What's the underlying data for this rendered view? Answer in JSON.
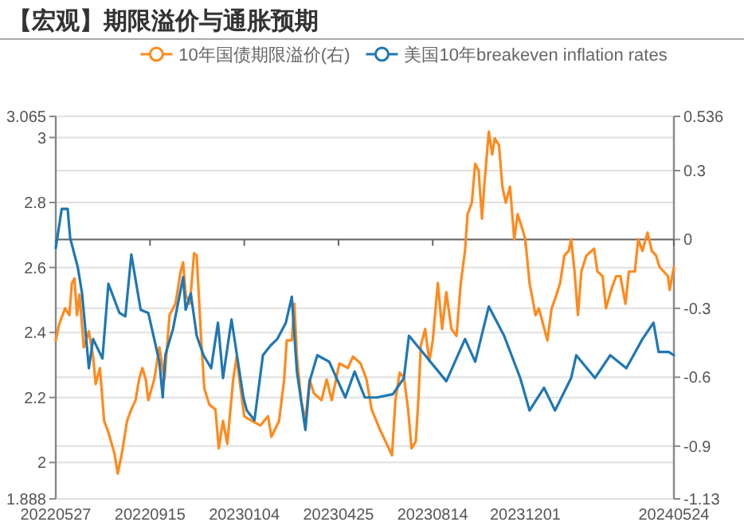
{
  "chart_data": {
    "type": "line",
    "title": "【宏观】期限溢价与通胀预期",
    "legend": "top",
    "grid": "y",
    "xlim": [
      "2022-05-27",
      "2024-05-24"
    ],
    "xticks": [
      {
        "value": "2022-05-27",
        "label": "20220527"
      },
      {
        "value": "2022-09-15",
        "label": "20220915"
      },
      {
        "value": "2023-01-04",
        "label": "20230104"
      },
      {
        "value": "2023-04-25",
        "label": "20230425"
      },
      {
        "value": "2023-08-14",
        "label": "20230814"
      },
      {
        "value": "2023-12-01",
        "label": "20231201"
      },
      {
        "value": "2024-05-24",
        "label": "20240524"
      }
    ],
    "ylim": [
      1.888,
      3.065
    ],
    "yticks": [
      1.888,
      2,
      2.2,
      2.4,
      2.6,
      2.8,
      3,
      3.065
    ],
    "y2lim": [
      -1.13,
      0.536
    ],
    "y2ticks": [
      -1.13,
      -0.9,
      -0.6,
      -0.3,
      0,
      0.3,
      0.536
    ],
    "series": [
      {
        "name": "10年国债期限溢价(右)",
        "color": "#ff8a1e",
        "axis": "y2",
        "x": [
          "2022-05-27",
          "2022-05-31",
          "2022-06-07",
          "2022-06-12",
          "2022-06-15",
          "2022-06-18",
          "2022-06-21",
          "2022-06-24",
          "2022-06-29",
          "2022-07-05",
          "2022-07-10",
          "2022-07-13",
          "2022-07-18",
          "2022-07-23",
          "2022-07-28",
          "2022-08-04",
          "2022-08-08",
          "2022-08-13",
          "2022-08-19",
          "2022-08-24",
          "2022-08-29",
          "2022-09-02",
          "2022-09-06",
          "2022-09-10",
          "2022-09-13",
          "2022-09-20",
          "2022-09-26",
          "2022-10-02",
          "2022-10-08",
          "2022-10-15",
          "2022-10-21",
          "2022-10-24",
          "2022-10-27",
          "2022-11-01",
          "2022-11-06",
          "2022-11-09",
          "2022-11-14",
          "2022-11-18",
          "2022-11-24",
          "2022-12-01",
          "2022-12-05",
          "2022-12-10",
          "2022-12-15",
          "2022-12-22",
          "2022-12-26",
          "2022-12-30",
          "2023-01-04",
          "2023-01-13",
          "2023-01-23",
          "2023-02-01",
          "2023-02-05",
          "2023-02-14",
          "2023-02-20",
          "2023-02-23",
          "2023-03-01",
          "2023-03-04",
          "2023-03-07",
          "2023-03-12",
          "2023-03-17",
          "2023-03-22",
          "2023-03-27",
          "2023-04-05",
          "2023-04-11",
          "2023-04-17",
          "2023-04-26",
          "2023-05-06",
          "2023-05-12",
          "2023-05-21",
          "2023-05-28",
          "2023-06-03",
          "2023-06-13",
          "2023-06-22",
          "2023-06-27",
          "2023-07-01",
          "2023-07-06",
          "2023-07-11",
          "2023-07-16",
          "2023-07-20",
          "2023-07-25",
          "2023-07-28",
          "2023-07-31",
          "2023-08-05",
          "2023-08-10",
          "2023-08-14",
          "2023-08-20",
          "2023-08-25",
          "2023-08-30",
          "2023-09-05",
          "2023-09-11",
          "2023-09-16",
          "2023-09-21",
          "2023-09-24",
          "2023-09-29",
          "2023-10-03",
          "2023-10-07",
          "2023-10-11",
          "2023-10-14",
          "2023-10-19",
          "2023-10-23",
          "2023-10-26",
          "2023-10-31",
          "2023-11-04",
          "2023-11-08",
          "2023-11-13",
          "2023-11-18",
          "2023-11-22",
          "2023-11-28",
          "2023-12-01",
          "2023-12-06",
          "2023-12-13",
          "2023-12-17",
          "2023-12-22",
          "2023-12-27",
          "2024-01-01",
          "2024-01-05",
          "2024-01-11",
          "2024-01-16",
          "2024-01-21",
          "2024-01-24",
          "2024-01-28",
          "2024-02-01",
          "2024-02-05",
          "2024-02-11",
          "2024-02-20",
          "2024-02-24",
          "2024-03-01",
          "2024-03-05",
          "2024-03-12",
          "2024-03-17",
          "2024-03-22",
          "2024-03-28",
          "2024-04-01",
          "2024-04-08",
          "2024-04-12",
          "2024-04-17",
          "2024-04-23",
          "2024-04-28",
          "2024-05-03",
          "2024-05-07",
          "2024-05-12",
          "2024-05-17",
          "2024-05-19",
          "2024-05-24"
        ],
        "values": [
          -0.44,
          -0.37,
          -0.3,
          -0.33,
          -0.19,
          -0.17,
          -0.33,
          -0.24,
          -0.47,
          -0.4,
          -0.51,
          -0.63,
          -0.56,
          -0.79,
          -0.84,
          -0.93,
          -1.02,
          -0.93,
          -0.79,
          -0.74,
          -0.7,
          -0.61,
          -0.56,
          -0.61,
          -0.7,
          -0.61,
          -0.47,
          -0.61,
          -0.33,
          -0.28,
          -0.14,
          -0.1,
          -0.24,
          -0.28,
          -0.06,
          -0.07,
          -0.42,
          -0.65,
          -0.72,
          -0.74,
          -0.91,
          -0.79,
          -0.89,
          -0.61,
          -0.51,
          -0.63,
          -0.77,
          -0.79,
          -0.81,
          -0.77,
          -0.86,
          -0.79,
          -0.61,
          -0.44,
          -0.44,
          -0.28,
          -0.51,
          -0.7,
          -0.79,
          -0.61,
          -0.67,
          -0.7,
          -0.61,
          -0.7,
          -0.54,
          -0.56,
          -0.51,
          -0.54,
          -0.61,
          -0.74,
          -0.83,
          -0.9,
          -0.94,
          -0.7,
          -0.58,
          -0.6,
          -0.74,
          -0.91,
          -0.88,
          -0.7,
          -0.46,
          -0.39,
          -0.53,
          -0.44,
          -0.19,
          -0.39,
          -0.23,
          -0.39,
          -0.42,
          -0.19,
          -0.05,
          0.11,
          0.16,
          0.33,
          0.3,
          0.09,
          0.25,
          0.47,
          0.37,
          0.44,
          0.41,
          0.23,
          0.16,
          0.23,
          0.0,
          0.11,
          0.04,
          0.0,
          -0.19,
          -0.33,
          -0.3,
          -0.37,
          -0.44,
          -0.3,
          -0.26,
          -0.19,
          -0.07,
          -0.05,
          0.0,
          -0.14,
          -0.33,
          -0.14,
          -0.07,
          -0.04,
          -0.14,
          -0.16,
          -0.3,
          -0.21,
          -0.16,
          -0.16,
          -0.28,
          -0.14,
          -0.14,
          0.0,
          -0.05,
          0.03,
          -0.05,
          -0.07,
          -0.12,
          -0.14,
          -0.16,
          -0.22,
          -0.12
        ]
      },
      {
        "name": "美国10年breakeven inflation rates",
        "color": "#1f77b4",
        "x": [
          "2022-05-27",
          "2022-06-03",
          "2022-06-10",
          "2022-06-13",
          "2022-06-22",
          "2022-06-27",
          "2022-07-05",
          "2022-07-10",
          "2022-07-21",
          "2022-07-28",
          "2022-08-10",
          "2022-08-17",
          "2022-08-24",
          "2022-09-04",
          "2022-09-13",
          "2022-09-26",
          "2022-09-30",
          "2022-10-03",
          "2022-10-12",
          "2022-10-24",
          "2022-10-27",
          "2022-11-02",
          "2022-11-09",
          "2022-11-17",
          "2022-11-26",
          "2022-12-04",
          "2022-12-10",
          "2022-12-20",
          "2023-01-03",
          "2023-01-07",
          "2023-01-16",
          "2023-01-26",
          "2023-02-04",
          "2023-02-12",
          "2023-02-22",
          "2023-03-01",
          "2023-03-07",
          "2023-03-17",
          "2023-03-22",
          "2023-03-31",
          "2023-04-14",
          "2023-05-03",
          "2023-05-14",
          "2023-05-26",
          "2023-06-09",
          "2023-06-28",
          "2023-07-11",
          "2023-07-17",
          "2023-08-05",
          "2023-08-30",
          "2023-09-21",
          "2023-10-03",
          "2023-10-19",
          "2023-11-06",
          "2023-11-25",
          "2023-12-06",
          "2023-12-23",
          "2024-01-05",
          "2024-01-24",
          "2024-01-30",
          "2024-02-21",
          "2024-03-10",
          "2024-03-29",
          "2024-04-17",
          "2024-04-30",
          "2024-05-06",
          "2024-05-18",
          "2024-05-24"
        ],
        "values": [
          2.66,
          2.78,
          2.78,
          2.69,
          2.6,
          2.52,
          2.29,
          2.38,
          2.32,
          2.55,
          2.46,
          2.45,
          2.64,
          2.47,
          2.46,
          2.31,
          2.2,
          2.33,
          2.41,
          2.57,
          2.47,
          2.52,
          2.39,
          2.33,
          2.29,
          2.43,
          2.26,
          2.44,
          2.2,
          2.16,
          2.13,
          2.33,
          2.36,
          2.38,
          2.43,
          2.51,
          2.28,
          2.1,
          2.25,
          2.33,
          2.31,
          2.2,
          2.28,
          2.2,
          2.2,
          2.21,
          2.26,
          2.39,
          2.33,
          2.25,
          2.38,
          2.31,
          2.48,
          2.39,
          2.26,
          2.16,
          2.23,
          2.16,
          2.26,
          2.33,
          2.26,
          2.33,
          2.29,
          2.38,
          2.43,
          2.34,
          2.34,
          2.33
        ]
      }
    ]
  }
}
